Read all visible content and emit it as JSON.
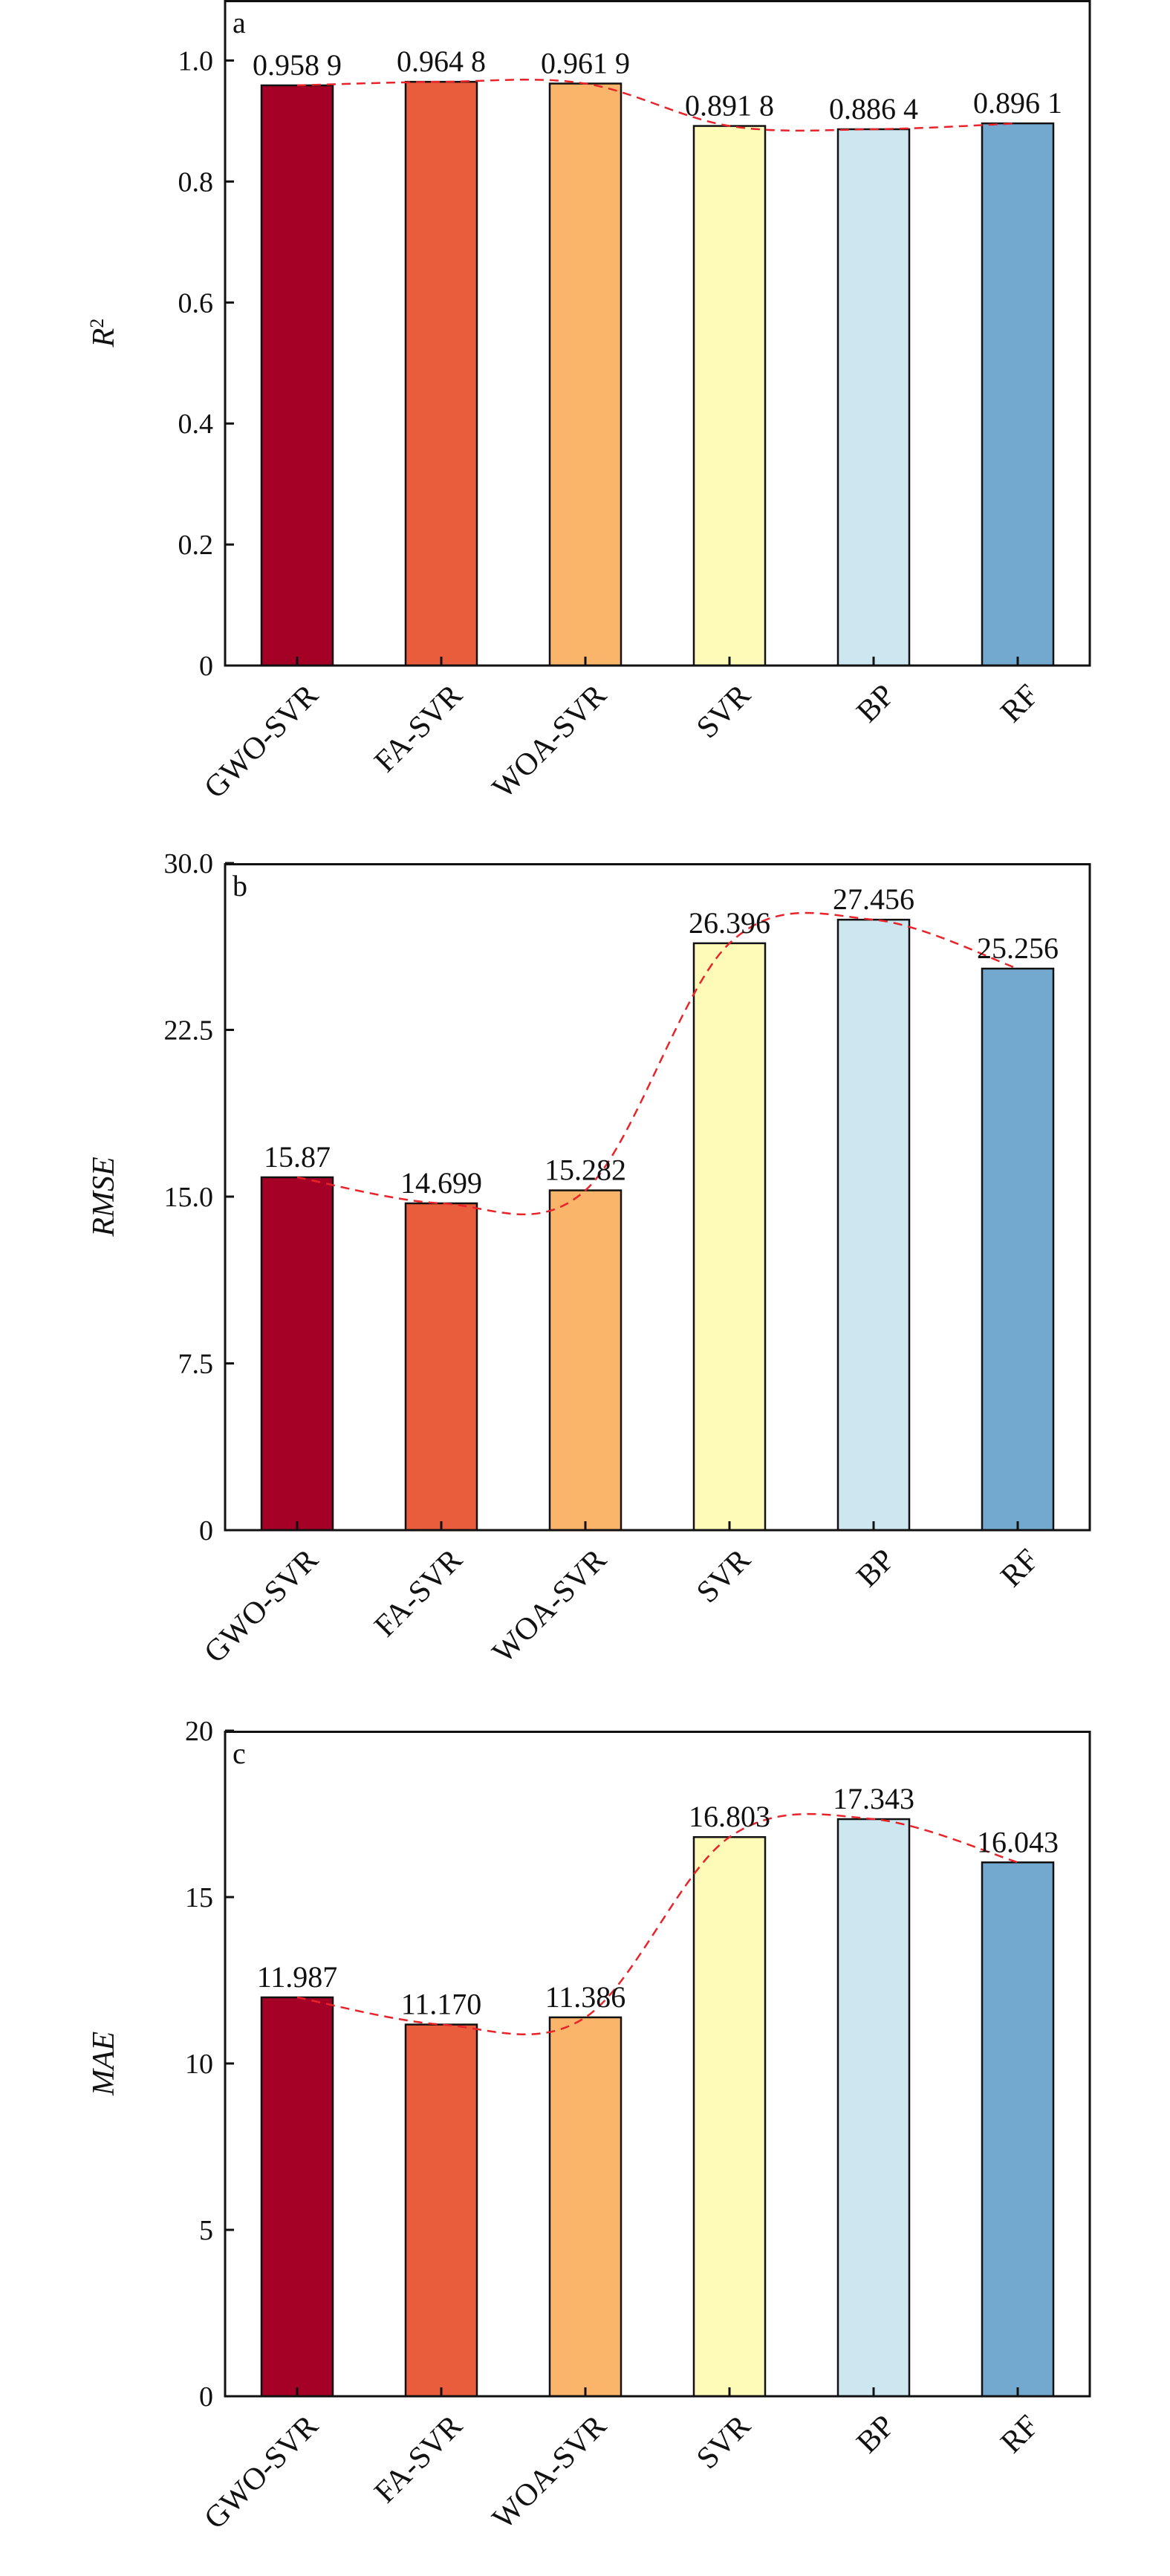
{
  "chart_data": [
    {
      "type": "bar",
      "panel_label": "a",
      "ylabel_main": "R",
      "ylabel_sup": "2",
      "categories": [
        "GWO-SVR",
        "FA-SVR",
        "WOA-SVR",
        "SVR",
        "BP",
        "RF"
      ],
      "values": [
        0.9589,
        0.9648,
        0.9619,
        0.8918,
        0.8864,
        0.8961
      ],
      "value_labels": [
        "0.958 9",
        "0.964 8",
        "0.961 9",
        "0.891 8",
        "0.886 4",
        "0.896 1"
      ],
      "ylim": [
        0,
        1.1
      ],
      "yticks": [
        0,
        0.2,
        0.4,
        0.6,
        0.8,
        1.0
      ],
      "ytick_labels": [
        "0",
        "0.2",
        "0.4",
        "0.6",
        "0.8",
        "1.0"
      ],
      "trend_line": "dashed"
    },
    {
      "type": "bar",
      "panel_label": "b",
      "ylabel_main": "RMSE",
      "ylabel_sup": "",
      "categories": [
        "GWO-SVR",
        "FA-SVR",
        "WOA-SVR",
        "SVR",
        "BP",
        "RF"
      ],
      "values": [
        15.87,
        14.699,
        15.282,
        26.396,
        27.456,
        25.256
      ],
      "value_labels": [
        "15.87",
        "14.699",
        "15.282",
        "26.396",
        "27.456",
        "25.256"
      ],
      "ylim": [
        0,
        30
      ],
      "yticks": [
        0,
        7.5,
        15.0,
        22.5,
        30.0
      ],
      "ytick_labels": [
        "0",
        "7.5",
        "15.0",
        "22.5",
        "30.0"
      ],
      "trend_line": "dashed"
    },
    {
      "type": "bar",
      "panel_label": "c",
      "ylabel_main": "MAE",
      "ylabel_sup": "",
      "categories": [
        "GWO-SVR",
        "FA-SVR",
        "WOA-SVR",
        "SVR",
        "BP",
        "RF"
      ],
      "values": [
        11.987,
        11.17,
        11.386,
        16.803,
        17.343,
        16.043
      ],
      "value_labels": [
        "11.987",
        "11.170",
        "11.386",
        "16.803",
        "17.343",
        "16.043"
      ],
      "ylim": [
        0,
        20
      ],
      "yticks": [
        0,
        5,
        10,
        15,
        20
      ],
      "ytick_labels": [
        "0",
        "5",
        "10",
        "15",
        "20"
      ],
      "trend_line": "dashed"
    }
  ],
  "colors": {
    "bars": [
      "#a50026",
      "#e95d3d",
      "#fbb56a",
      "#fefbb8",
      "#cde7f1",
      "#73a9cf"
    ],
    "trend": "#e8232a",
    "axis": "#111111"
  }
}
